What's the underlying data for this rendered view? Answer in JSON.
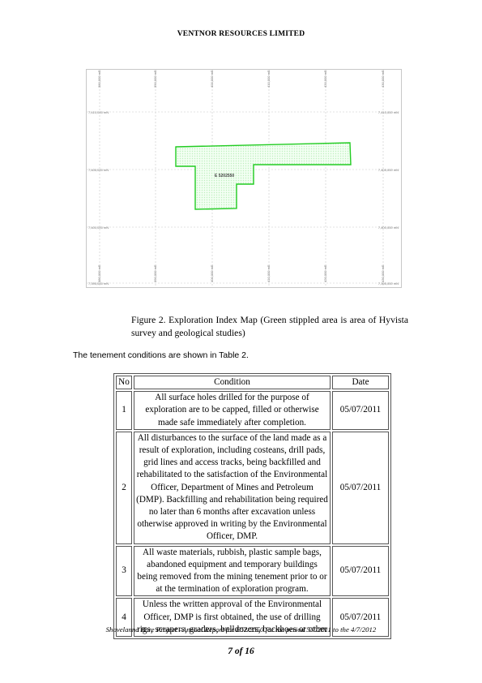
{
  "header": {
    "company": "VENTNOR RESOURCES LIMITED"
  },
  "map": {
    "easting_labels": [
      "380,000 mE",
      "390,000 mE",
      "400,000 mE",
      "410,000 mE",
      "420,000 mE",
      "430,000 mE"
    ],
    "northing_labels": [
      "7,410,000 mN",
      "7,405,000 mN",
      "7,400,000 mN",
      "7,395,000 mN"
    ],
    "tenement_label": "E 5202550",
    "tenement_color": "#22cc22",
    "stipple_color": "#bfeebf"
  },
  "caption": "Figure 2. Exploration Index Map (Green stippled area is area of Hyvista survey and geological studies)",
  "intro": "The tenement conditions are shown in Table 2.",
  "table": {
    "headers": {
      "no": "No",
      "condition": "Condition",
      "date": "Date"
    },
    "rows": [
      {
        "no": "1",
        "condition": "All surface holes drilled for the purpose of exploration are to be capped, filled or otherwise made safe immediately after completion.",
        "date": "05/07/2011"
      },
      {
        "no": "2",
        "condition": "All disturbances to the surface of the land made as a result of exploration, including costeans, drill pads, grid lines and access tracks, being backfilled and rehabilitated to the satisfaction of the Environmental Officer, Department of Mines and Petroleum (DMP). Backfilling and rehabilitation being required no later than 6 months after excavation unless otherwise approved in writing by the Environmental Officer, DMP.",
        "date": "05/07/2011"
      },
      {
        "no": "3",
        "condition": "All waste materials, rubbish, plastic sample bags, abandoned equipment and temporary buildings being removed from the mining tenement prior to or at the termination of exploration program.",
        "date": "05/07/2011"
      },
      {
        "no": "4",
        "condition": "Unless the written approval of the Environmental Officer, DMP is first obtained, the use of drilling rigs, scrapers, graders, bulldozers, backhoes or other",
        "date": "05/07/2011"
      }
    ]
  },
  "footer": {
    "text": "Shovelanna Bore Project –Annual Report for E52/2550 for the period 5/7/2011 to the 4/7/2012",
    "page": "7 of 16"
  }
}
